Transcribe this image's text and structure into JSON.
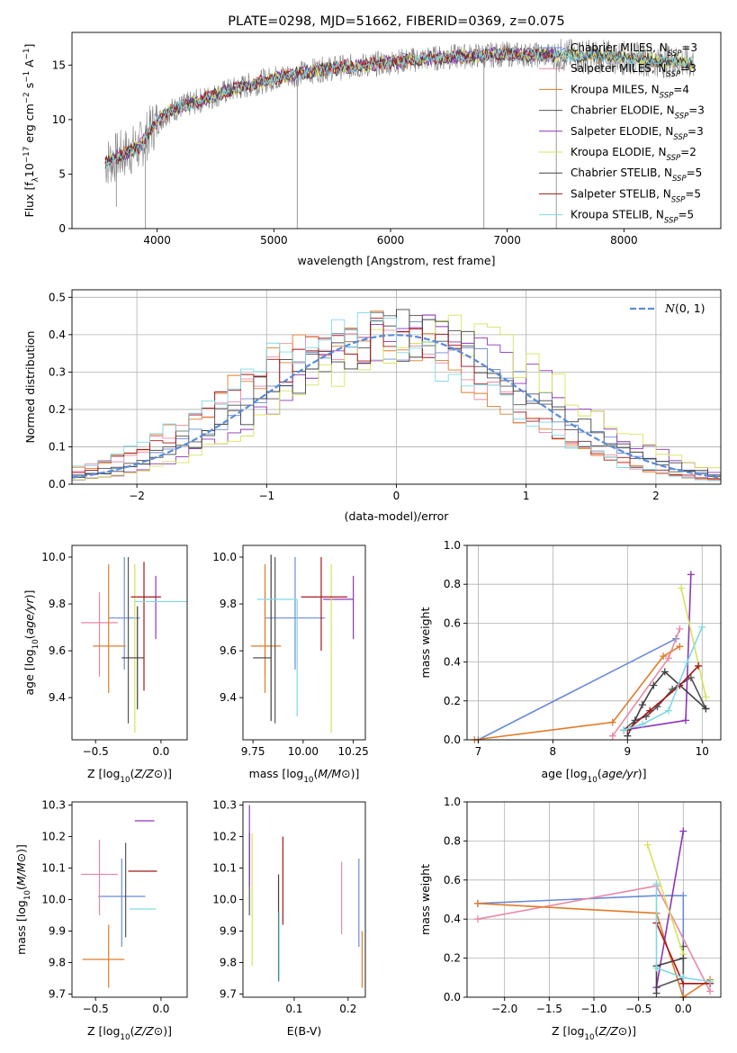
{
  "figure": {
    "colors": {
      "Chabrier MILES": "#6b8bd6",
      "Salpeter MILES": "#e78aa6",
      "Kroupa MILES": "#e07b2a",
      "Chabrier ELODIE": "#555555",
      "Salpeter ELODIE": "#8e35b6",
      "Kroupa ELODIE": "#d7e35a",
      "Chabrier STELIB": "#404040",
      "Salpeter STELIB": "#a4161a",
      "Kroupa STELIB": "#7fd8e3",
      "data": "#808080",
      "gaussian": "#5b8bd8"
    }
  },
  "chart_data": [
    {
      "id": "spectrum",
      "type": "line",
      "title": "PLATE=0298, MJD=51662, FIBERID=0369, z=0.075",
      "xlabel": "wavelength [Angstrom, rest frame]",
      "ylabel": "Flux [f_λ10^{-17} erg cm^{-2} s^{-1} A^{-1}]",
      "xlim": [
        3270,
        8830
      ],
      "ylim": [
        0,
        18
      ],
      "xticks": [
        4000,
        5000,
        6000,
        7000,
        8000
      ],
      "yticks": [
        0,
        5,
        10,
        15
      ],
      "grid": false,
      "legend_position": "top-right",
      "legend": [
        {
          "name": "Chabrier MILES",
          "sub": "3"
        },
        {
          "name": "Salpeter MILES",
          "sub": "3"
        },
        {
          "name": "Kroupa MILES",
          "sub": "4"
        },
        {
          "name": "Chabrier ELODIE",
          "sub": "3"
        },
        {
          "name": "Salpeter ELODIE",
          "sub": "3"
        },
        {
          "name": "Kroupa ELODIE",
          "sub": "2"
        },
        {
          "name": "Chabrier STELIB",
          "sub": "5"
        },
        {
          "name": "Salpeter STELIB",
          "sub": "5"
        },
        {
          "name": "Kroupa STELIB",
          "sub": "5"
        }
      ],
      "continuum": [
        {
          "x": 3550,
          "y": 6.0
        },
        {
          "x": 3700,
          "y": 6.8
        },
        {
          "x": 3850,
          "y": 7.5
        },
        {
          "x": 3950,
          "y": 9.2
        },
        {
          "x": 4100,
          "y": 10.8
        },
        {
          "x": 4300,
          "y": 11.5
        },
        {
          "x": 4600,
          "y": 12.6
        },
        {
          "x": 5000,
          "y": 13.8
        },
        {
          "x": 5400,
          "y": 14.6
        },
        {
          "x": 5800,
          "y": 15.0
        },
        {
          "x": 6200,
          "y": 15.5
        },
        {
          "x": 6600,
          "y": 15.8
        },
        {
          "x": 7000,
          "y": 16.0
        },
        {
          "x": 7400,
          "y": 15.9
        },
        {
          "x": 7800,
          "y": 15.8
        },
        {
          "x": 8200,
          "y": 15.5
        },
        {
          "x": 8600,
          "y": 15.2
        }
      ]
    },
    {
      "id": "residuals",
      "type": "step",
      "xlabel": "(data-model)/error",
      "ylabel": "Normed distribution",
      "xlim": [
        -2.5,
        2.5
      ],
      "ylim": [
        0,
        0.52
      ],
      "xticks": [
        -2,
        -1,
        0,
        1,
        2
      ],
      "yticks": [
        0.0,
        0.1,
        0.2,
        0.3,
        0.4,
        0.5
      ],
      "grid": true,
      "legend_position": "top-right",
      "legend": [
        {
          "name": "N(0,1)"
        }
      ],
      "gaussian": {
        "mu": 0,
        "sigma": 1
      }
    },
    {
      "id": "age-vs-Z",
      "type": "errorbar",
      "xlabel": "Z [log10(Z/Z⊙)]",
      "ylabel": "age [log10(age/yr)]",
      "xlim": [
        -0.68,
        0.2
      ],
      "ylim": [
        9.22,
        10.05
      ],
      "xticks": [
        -0.5,
        0.0
      ],
      "yticks": [
        9.4,
        9.6,
        9.8,
        10.0
      ],
      "points": [
        {
          "series": "Chabrier MILES",
          "x": -0.28,
          "xerr": [
            0.12,
            0.12
          ],
          "y": 9.74,
          "yerr": [
            0.22,
            0.26
          ]
        },
        {
          "series": "Salpeter MILES",
          "x": -0.47,
          "xerr": [
            0.14,
            0.14
          ],
          "y": 9.72,
          "yerr": [
            0.23,
            0.13
          ]
        },
        {
          "series": "Kroupa MILES",
          "x": -0.4,
          "xerr": [
            0.12,
            0.13
          ],
          "y": 9.62,
          "yerr": [
            0.2,
            0.35
          ]
        },
        {
          "series": "Chabrier ELODIE",
          "x": -0.25,
          "xerr": [
            0.0,
            0.0
          ],
          "y": 9.82,
          "yerr": [
            0.53,
            0.18
          ]
        },
        {
          "series": "Salpeter ELODIE",
          "x": -0.04,
          "xerr": [
            0.0,
            0.0
          ],
          "y": 9.82,
          "yerr": [
            0.17,
            0.1
          ]
        },
        {
          "series": "Kroupa ELODIE",
          "x": -0.2,
          "xerr": [
            0.0,
            0.0
          ],
          "y": 9.81,
          "yerr": [
            0.56,
            0.16
          ]
        },
        {
          "series": "Chabrier STELIB",
          "x": -0.18,
          "xerr": [
            0.12,
            0.05
          ],
          "y": 9.57,
          "yerr": [
            0.22,
            0.22
          ]
        },
        {
          "series": "Salpeter STELIB",
          "x": -0.13,
          "xerr": [
            0.1,
            0.13
          ],
          "y": 9.83,
          "yerr": [
            0.4,
            0.15
          ]
        },
        {
          "series": "Kroupa STELIB",
          "x": -0.1,
          "xerr": [
            0.1,
            0.3
          ],
          "y": 9.81,
          "yerr": [
            0.0,
            0.0
          ]
        }
      ]
    },
    {
      "id": "age-vs-mass",
      "type": "errorbar",
      "xlabel": "mass [log10(M/M⊙)]",
      "ylabel": "",
      "xlim": [
        9.7,
        10.31
      ],
      "ylim": [
        9.22,
        10.05
      ],
      "xticks": [
        9.75,
        10.0,
        10.25
      ],
      "yticks": [
        9.4,
        9.6,
        9.8,
        10.0
      ],
      "points": [
        {
          "series": "Chabrier MILES",
          "x": 9.96,
          "xerr": [
            0.15,
            0.15
          ],
          "y": 9.74,
          "yerr": [
            0.22,
            0.26
          ]
        },
        {
          "series": "Salpeter MILES",
          "x": 9.81,
          "xerr": [
            0.0,
            0.0
          ],
          "y": 9.72,
          "yerr": [
            0.23,
            0.13
          ]
        },
        {
          "series": "Kroupa MILES",
          "x": 9.81,
          "xerr": [
            0.07,
            0.08
          ],
          "y": 9.62,
          "yerr": [
            0.2,
            0.35
          ]
        },
        {
          "series": "Chabrier ELODIE",
          "x": 9.86,
          "xerr": [
            0.0,
            0.0
          ],
          "y": 9.82,
          "yerr": [
            0.53,
            0.18
          ]
        },
        {
          "series": "Salpeter ELODIE",
          "x": 10.25,
          "xerr": [
            0.15,
            0.0
          ],
          "y": 9.82,
          "yerr": [
            0.17,
            0.1
          ]
        },
        {
          "series": "Kroupa ELODIE",
          "x": 10.14,
          "xerr": [
            0.0,
            0.0
          ],
          "y": 9.81,
          "yerr": [
            0.56,
            0.16
          ]
        },
        {
          "series": "Chabrier STELIB",
          "x": 9.84,
          "xerr": [
            0.09,
            0.0
          ],
          "y": 9.57,
          "yerr": [
            0.27,
            0.44
          ]
        },
        {
          "series": "Salpeter STELIB",
          "x": 10.09,
          "xerr": [
            0.1,
            0.13
          ],
          "y": 9.83,
          "yerr": [
            0.23,
            0.17
          ]
        },
        {
          "series": "Kroupa STELIB",
          "x": 9.97,
          "xerr": [
            0.2,
            0.0
          ],
          "y": 9.82,
          "yerr": [
            0.5,
            0.0
          ]
        }
      ]
    },
    {
      "id": "mw-vs-age",
      "type": "line",
      "xlabel": "age [log10(age/yr)]",
      "ylabel": "mass weight",
      "xlim": [
        6.85,
        10.25
      ],
      "ylim": [
        0,
        1.0
      ],
      "xticks": [
        7,
        8,
        9,
        10
      ],
      "yticks": [
        0.0,
        0.2,
        0.4,
        0.6,
        0.8,
        1.0
      ],
      "grid": true,
      "series": [
        {
          "name": "Chabrier MILES",
          "points": [
            [
              7.0,
              0.0
            ],
            [
              9.65,
              0.52
            ]
          ]
        },
        {
          "name": "Salpeter MILES",
          "points": [
            [
              8.8,
              0.02
            ],
            [
              9.55,
              0.42
            ],
            [
              9.7,
              0.57
            ]
          ]
        },
        {
          "name": "Kroupa MILES",
          "points": [
            [
              6.95,
              0.0
            ],
            [
              8.8,
              0.09
            ],
            [
              9.48,
              0.43
            ],
            [
              9.7,
              0.48
            ]
          ]
        },
        {
          "name": "Chabrier ELODIE",
          "points": [
            [
              8.95,
              0.05
            ],
            [
              9.1,
              0.1
            ],
            [
              9.25,
              0.12
            ],
            [
              9.4,
              0.17
            ],
            [
              9.6,
              0.26
            ],
            [
              9.85,
              0.32
            ],
            [
              10.05,
              0.16
            ]
          ]
        },
        {
          "name": "Salpeter ELODIE",
          "points": [
            [
              8.95,
              0.05
            ],
            [
              9.78,
              0.1
            ],
            [
              9.85,
              0.85
            ]
          ]
        },
        {
          "name": "Kroupa ELODIE",
          "points": [
            [
              9.72,
              0.78
            ],
            [
              10.05,
              0.22
            ]
          ]
        },
        {
          "name": "Chabrier STELIB",
          "points": [
            [
              9.0,
              0.02
            ],
            [
              9.2,
              0.18
            ],
            [
              9.35,
              0.28
            ],
            [
              9.5,
              0.35
            ],
            [
              10.05,
              0.16
            ]
          ]
        },
        {
          "name": "Salpeter STELIB",
          "points": [
            [
              9.0,
              0.05
            ],
            [
              9.3,
              0.15
            ],
            [
              9.7,
              0.28
            ],
            [
              9.95,
              0.38
            ]
          ]
        },
        {
          "name": "Kroupa STELIB",
          "points": [
            [
              8.95,
              0.05
            ],
            [
              9.2,
              0.08
            ],
            [
              9.55,
              0.15
            ],
            [
              9.8,
              0.4
            ],
            [
              10.0,
              0.58
            ]
          ]
        }
      ]
    },
    {
      "id": "mass-vs-Z",
      "type": "errorbar",
      "xlabel": "Z [log10(Z/Z⊙)]",
      "ylabel": "mass [log10(M/M⊙)]",
      "xlim": [
        -0.68,
        0.2
      ],
      "ylim": [
        9.69,
        10.31
      ],
      "xticks": [
        -0.5,
        0.0
      ],
      "yticks": [
        9.7,
        9.8,
        9.9,
        10.0,
        10.1,
        10.2,
        10.3
      ],
      "points": [
        {
          "series": "Chabrier MILES",
          "x": -0.3,
          "xerr": [
            0.18,
            0.18
          ],
          "y": 10.01,
          "yerr": [
            0.16,
            0.12
          ]
        },
        {
          "series": "Salpeter MILES",
          "x": -0.47,
          "xerr": [
            0.14,
            0.14
          ],
          "y": 10.08,
          "yerr": [
            0.13,
            0.11
          ]
        },
        {
          "series": "Kroupa MILES",
          "x": -0.4,
          "xerr": [
            0.2,
            0.12
          ],
          "y": 9.81,
          "yerr": [
            0.09,
            0.11
          ]
        },
        {
          "series": "Chabrier ELODIE",
          "x": -0.27,
          "xerr": [
            0.0,
            0.0
          ],
          "y": 10.03,
          "yerr": [
            0.15,
            0.15
          ]
        },
        {
          "series": "Salpeter ELODIE",
          "x": -0.05,
          "xerr": [
            0.15,
            0.0
          ],
          "y": 10.25,
          "yerr": [
            0.0,
            0.0
          ]
        },
        {
          "series": "Kroupa ELODIE",
          "x": -0.2,
          "xerr": [
            0.0,
            0.0
          ],
          "y": 10.14,
          "yerr": [
            0.0,
            0.0
          ]
        },
        {
          "series": "Chabrier STELIB",
          "x": -0.18,
          "xerr": [
            0.0,
            0.0
          ],
          "y": 9.83,
          "yerr": [
            0.0,
            0.0
          ]
        },
        {
          "series": "Salpeter STELIB",
          "x": -0.15,
          "xerr": [
            0.1,
            0.12
          ],
          "y": 10.09,
          "yerr": [
            0.0,
            0.0
          ]
        },
        {
          "series": "Kroupa STELIB",
          "x": -0.14,
          "xerr": [
            0.1,
            0.1
          ],
          "y": 9.97,
          "yerr": [
            0.0,
            0.0
          ]
        }
      ]
    },
    {
      "id": "mass-vs-ebv",
      "type": "errorbar",
      "xlabel": "E(B-V)",
      "ylabel": "",
      "xlim": [
        0.005,
        0.232
      ],
      "ylim": [
        9.69,
        10.31
      ],
      "xticks": [
        0.1,
        0.2
      ],
      "yticks": [
        9.7,
        9.8,
        9.9,
        10.0,
        10.1,
        10.2,
        10.3
      ],
      "points": [
        {
          "series": "Chabrier MILES",
          "x": 0.22,
          "y": 9.99,
          "yerr": [
            0.14,
            0.14
          ]
        },
        {
          "series": "Salpeter MILES",
          "x": 0.188,
          "y": 10.01,
          "yerr": [
            0.12,
            0.11
          ]
        },
        {
          "series": "Kroupa MILES",
          "x": 0.226,
          "y": 9.81,
          "yerr": [
            0.09,
            0.09
          ]
        },
        {
          "series": "Chabrier ELODIE",
          "x": 0.017,
          "y": 10.12,
          "yerr": [
            0.17,
            0.09
          ]
        },
        {
          "series": "Salpeter ELODIE",
          "x": 0.017,
          "y": 10.21,
          "yerr": [
            0.17,
            0.09
          ]
        },
        {
          "series": "Kroupa ELODIE",
          "x": 0.022,
          "y": 10.0,
          "yerr": [
            0.21,
            0.21
          ]
        },
        {
          "series": "Chabrier STELIB",
          "x": 0.071,
          "y": 9.91,
          "yerr": [
            0.17,
            0.17
          ]
        },
        {
          "series": "Salpeter STELIB",
          "x": 0.079,
          "y": 10.06,
          "yerr": [
            0.14,
            0.14
          ]
        },
        {
          "series": "Kroupa STELIB",
          "x": 0.072,
          "y": 9.85,
          "yerr": [
            0.11,
            0.11
          ]
        }
      ]
    },
    {
      "id": "mw-vs-Z",
      "type": "line",
      "xlabel": "Z [log10(Z/Z⊙)]",
      "ylabel": "mass weight",
      "xlim": [
        -2.42,
        0.42
      ],
      "ylim": [
        0,
        1.0
      ],
      "xticks": [
        -2.0,
        -1.5,
        -1.0,
        -0.5,
        0.0
      ],
      "yticks": [
        0.0,
        0.2,
        0.4,
        0.6,
        0.8,
        1.0
      ],
      "grid": true,
      "series": [
        {
          "name": "Chabrier MILES",
          "points": [
            [
              -2.3,
              0.48
            ],
            [
              -0.3,
              0.52
            ],
            [
              0.0,
              0.52
            ],
            [
              0.0,
              0.0
            ]
          ]
        },
        {
          "name": "Salpeter MILES",
          "points": [
            [
              -2.3,
              0.4
            ],
            [
              -0.3,
              0.57
            ],
            [
              0.3,
              0.03
            ]
          ]
        },
        {
          "name": "Kroupa MILES",
          "points": [
            [
              -2.3,
              0.48
            ],
            [
              -0.3,
              0.43
            ],
            [
              0.0,
              0.0
            ],
            [
              0.3,
              0.09
            ]
          ]
        },
        {
          "name": "Chabrier ELODIE",
          "points": [
            [
              -0.3,
              0.05
            ],
            [
              0.0,
              0.1
            ],
            [
              0.0,
              0.26
            ]
          ]
        },
        {
          "name": "Salpeter ELODIE",
          "points": [
            [
              -0.3,
              0.05
            ],
            [
              0.0,
              0.85
            ]
          ]
        },
        {
          "name": "Kroupa ELODIE",
          "points": [
            [
              -0.4,
              0.78
            ],
            [
              0.0,
              0.22
            ]
          ]
        },
        {
          "name": "Chabrier STELIB",
          "points": [
            [
              -0.3,
              0.02
            ],
            [
              -0.3,
              0.16
            ],
            [
              0.0,
              0.2
            ]
          ]
        },
        {
          "name": "Salpeter STELIB",
          "points": [
            [
              -0.3,
              0.38
            ],
            [
              0.0,
              0.07
            ],
            [
              0.3,
              0.07
            ]
          ]
        },
        {
          "name": "Kroupa STELIB",
          "points": [
            [
              -0.3,
              0.58
            ],
            [
              -0.3,
              0.15
            ],
            [
              0.0,
              0.1
            ],
            [
              0.3,
              0.08
            ]
          ]
        }
      ]
    }
  ]
}
